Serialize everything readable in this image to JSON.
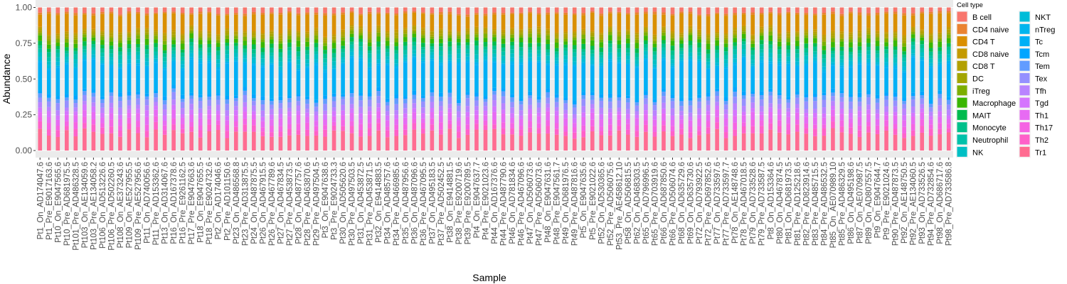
{
  "chart_data": {
    "type": "bar",
    "stacked": true,
    "title": "",
    "xlabel": "Sample",
    "ylabel": "Abundance",
    "ylim": [
      0,
      1
    ],
    "yticks": [
      "0.00",
      "0.25",
      "0.50",
      "0.75",
      "1.00"
    ],
    "grid": true,
    "background": "#ebebeb",
    "legend_position": "right",
    "legend_title": "Cell type",
    "categories": [
      "Pt1_On_AD174047.6",
      "Pt1_Pre_E9017163.6",
      "Pt10_On_E9047565.6",
      "Pt10_Pre_AD681975.5",
      "Pt101_Pre_AD486328.5",
      "Pt103_On_AE134059.6",
      "Pt103_Pre_AE134058.2",
      "Pt106_On_AD513226.6",
      "Pt106_Pre_AD502260.5",
      "Pt108_On_AE373243.6",
      "Pt109_On_AE527955.5",
      "Pt109_Pre_AE527956.6",
      "Pt11_On_AD740056.6",
      "Pt11_Pre_AD153362.6",
      "Pt13_On_AD314067.6",
      "Pt16_On_AD167378.6",
      "Pt16_Pre_E9261162.5",
      "Pt17_Pre_E9047663.6",
      "Pt18_On_E9047655.5",
      "Pt18_Pre_E9024732.6",
      "Pt2_On_AD174046.6",
      "Pt2_Pre_AD101150.6",
      "Pt23_On_AD486568.8",
      "Pt23_Pre_AD313875.5",
      "Pt24_On_AD487875.5",
      "Pt26_On_AD467915.5",
      "Pt26_Pre_AD467789.6",
      "Pt27_On_AD467834.5",
      "Pt27_Pre_AD453873.5",
      "Pt28_On_AD487757.6",
      "Pt28_Pre_AD463870.6",
      "Pt29_Pre_AD497504.5",
      "Pt3_On_E9047638.6",
      "Pt3_Pre_E9024733.3",
      "Pt30_On_AD505620.6",
      "Pt30_Pre_AD497503.5",
      "Pt31_On_AD453872.5",
      "Pt31_Pre_AD453871.5",
      "Pt32_On_E9414883.5",
      "Pt34_On_AD485757.6",
      "Pt34_Pre_AD466985.6",
      "Pt35_On_AD487956.6",
      "Pt36_On_AD487096.6",
      "Pt36_Pre_AD467095.5",
      "Pt37_On_AD495183.5",
      "Pt37_Pre_AD502452.5",
      "Pt38_On_E9414881.5",
      "Pt38_Pre_E9200719.6",
      "Pt39_Pre_E9200789.5",
      "Pt4_On_E9047637.7",
      "Pt4_Pre_E9021023.6",
      "Pt44_On_AD167376.6",
      "Pt44_Pre_AD487790.6",
      "Pt46_On_AD781834.6",
      "Pt46_Pre_AD467096.6",
      "Pt47_On_AD506073.6",
      "Pt47_Pre_AD506073.6",
      "Pt48_On_E9047631.6",
      "Pt48_Pre_E9047561.7",
      "Pt49_On_AD681976.5",
      "Pt49_Pre_AD487816.6",
      "Pt5_On_E9047635.6",
      "Pt5_Pre_E9021022.6",
      "Pt52_On_AD530365.6",
      "Pt52_Pre_AD506075.6",
      "Pt53_Pre_AE458612.10",
      "Pt58_On_AD506815.5",
      "Pt62_On_AD468303.5",
      "Pt65_On_AD796996.5",
      "Pt65_Pre_AD703919.6",
      "Pt66_On_AD687850.6",
      "Pt66_Pre_AD506074.6",
      "Pt68_On_AD635729.6",
      "Pt69_On_AD635730.6",
      "Pt72_On_AD793922.5",
      "Pt72_Pre_AD697852.6",
      "Pt77_On_AD733597.6",
      "Pt77_Pre_AD733597.7",
      "Pt78_On_AE148748.6",
      "Pt78_Pre_AD467018.5",
      "Pt79_On_AD733528.6",
      "Pt79_Pre_AD733587.5",
      "Pt8_On_AD153364.6",
      "Pt80_On_AD467874.5",
      "Pt81_On_AD681973.5",
      "Pt81_Pre_AD125218.6",
      "Pt82_Pre_AD823914.6",
      "Pt83_Pre_AD485715.5",
      "Pt84_Pre_AD486532.5",
      "Pt85_On_AE070989.10",
      "Pt85_Pre_AD486329.5",
      "Pt86_On_AD495198.6",
      "Pt87_On_AE070987.5",
      "Pt89_On_AD807557.5",
      "Pt9_On_E9047644.7",
      "Pt9_Pre_E9021024.6",
      "Pt90_Pre_AD487873.5",
      "Pt92_On_AE148750.5",
      "Pt92_Pre_AE134060.5",
      "Pt93_On_AD733526.5",
      "Pt94_Pre_AD732854.6",
      "Pt98_On_AD686717.6",
      "Pt98_Pre_AD733586.8"
    ],
    "cell_types": [
      "B cell",
      "CD4 naive",
      "CD4 T",
      "CD8 naive",
      "CD8 T",
      "DC",
      "iTreg",
      "Macrophage",
      "MAIT",
      "Monocyte",
      "Neutrophil",
      "NK",
      "NKT",
      "nTreg",
      "Tc",
      "Tcm",
      "Tem",
      "Tex",
      "Tfh",
      "Tgd",
      "Th1",
      "Th17",
      "Th2",
      "Tr1"
    ],
    "colors": [
      "#F8766D",
      "#EA8331",
      "#DA8F00",
      "#C49A00",
      "#B3A000",
      "#A3A500",
      "#7CAE00",
      "#39B600",
      "#00BB4E",
      "#00C08B",
      "#00C1AA",
      "#00BFC4",
      "#00BCD8",
      "#00B5EE",
      "#00B0F6",
      "#00A5FF",
      "#619CFF",
      "#9590FF",
      "#B983FF",
      "#D575FE",
      "#E76BF3",
      "#F564E3",
      "#FF61C9",
      "#FF6C91"
    ],
    "proportions": [
      0.04,
      0.015,
      0.12,
      0.015,
      0.02,
      0.015,
      0.025,
      0.035,
      0.03,
      0.03,
      0.03,
      0.03,
      0.025,
      0.015,
      0.22,
      0.025,
      0.03,
      0.045,
      0.04,
      0.035,
      0.05,
      0.04,
      0.045,
      0.13
    ],
    "series_note": ""
  }
}
